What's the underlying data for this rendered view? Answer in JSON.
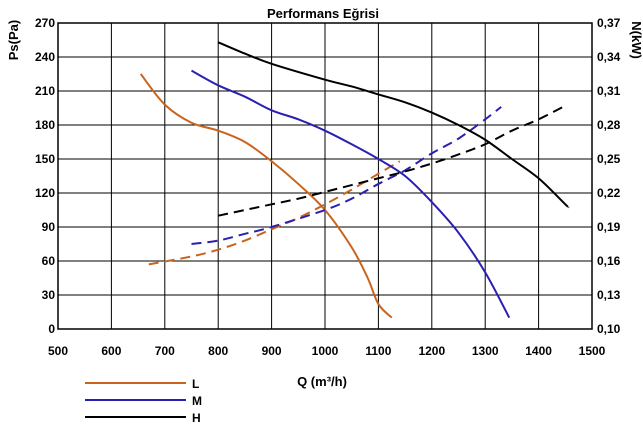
{
  "chart_data": {
    "type": "line",
    "title": "Performans Eğrisi",
    "xlabel": "Q (m³/h)",
    "ylabel_left": "Ps(Pa)",
    "ylabel_right": "N(kW)",
    "xlim": [
      500,
      1500
    ],
    "ylim_left": [
      0,
      270
    ],
    "ylim_right": [
      0.1,
      0.37
    ],
    "grid": true,
    "legend_position": "bottom-left",
    "x_ticks": [
      "500",
      "600",
      "700",
      "800",
      "900",
      "1000",
      "1100",
      "1200",
      "1300",
      "1400",
      "1500"
    ],
    "y_left_ticks": [
      "0",
      "30",
      "60",
      "90",
      "120",
      "150",
      "180",
      "210",
      "240",
      "270"
    ],
    "y_right_ticks": [
      "0,10",
      "0,13",
      "0,16",
      "0,19",
      "0,22",
      "0,25",
      "0,28",
      "0,31",
      "0,34",
      "0,37"
    ],
    "series": [
      {
        "name": "L",
        "color": "#c8641e",
        "pressure": [
          [
            655,
            225
          ],
          [
            700,
            198
          ],
          [
            750,
            182
          ],
          [
            800,
            175
          ],
          [
            850,
            165
          ],
          [
            900,
            148
          ],
          [
            950,
            128
          ],
          [
            1000,
            105
          ],
          [
            1050,
            72
          ],
          [
            1080,
            45
          ],
          [
            1100,
            22
          ],
          [
            1125,
            10
          ]
        ],
        "power": [
          [
            670,
            0.157
          ],
          [
            750,
            0.164
          ],
          [
            800,
            0.17
          ],
          [
            850,
            0.178
          ],
          [
            900,
            0.188
          ],
          [
            950,
            0.198
          ],
          [
            1000,
            0.21
          ],
          [
            1050,
            0.223
          ],
          [
            1100,
            0.237
          ],
          [
            1140,
            0.248
          ]
        ]
      },
      {
        "name": "M",
        "color": "#2a1fb3",
        "pressure": [
          [
            750,
            228
          ],
          [
            800,
            215
          ],
          [
            850,
            205
          ],
          [
            900,
            193
          ],
          [
            950,
            185
          ],
          [
            1000,
            175
          ],
          [
            1050,
            163
          ],
          [
            1100,
            150
          ],
          [
            1150,
            135
          ],
          [
            1200,
            112
          ],
          [
            1250,
            85
          ],
          [
            1300,
            50
          ],
          [
            1345,
            10
          ]
        ],
        "power": [
          [
            750,
            0.175
          ],
          [
            800,
            0.178
          ],
          [
            850,
            0.184
          ],
          [
            900,
            0.19
          ],
          [
            1000,
            0.205
          ],
          [
            1050,
            0.215
          ],
          [
            1100,
            0.228
          ],
          [
            1150,
            0.24
          ],
          [
            1200,
            0.255
          ],
          [
            1250,
            0.268
          ],
          [
            1300,
            0.285
          ],
          [
            1330,
            0.296
          ]
        ]
      },
      {
        "name": "H",
        "color": "#000000",
        "pressure": [
          [
            800,
            253
          ],
          [
            850,
            243
          ],
          [
            900,
            234
          ],
          [
            1000,
            220
          ],
          [
            1050,
            214
          ],
          [
            1100,
            207
          ],
          [
            1150,
            200
          ],
          [
            1200,
            191
          ],
          [
            1250,
            180
          ],
          [
            1300,
            167
          ],
          [
            1350,
            150
          ],
          [
            1400,
            133
          ],
          [
            1450,
            110
          ],
          [
            1455,
            108
          ]
        ],
        "power": [
          [
            800,
            0.2
          ],
          [
            850,
            0.205
          ],
          [
            900,
            0.21
          ],
          [
            950,
            0.215
          ],
          [
            1000,
            0.221
          ],
          [
            1050,
            0.227
          ],
          [
            1100,
            0.233
          ],
          [
            1150,
            0.239
          ],
          [
            1200,
            0.246
          ],
          [
            1250,
            0.254
          ],
          [
            1300,
            0.263
          ],
          [
            1350,
            0.275
          ],
          [
            1400,
            0.285
          ],
          [
            1450,
            0.297
          ]
        ]
      }
    ]
  }
}
